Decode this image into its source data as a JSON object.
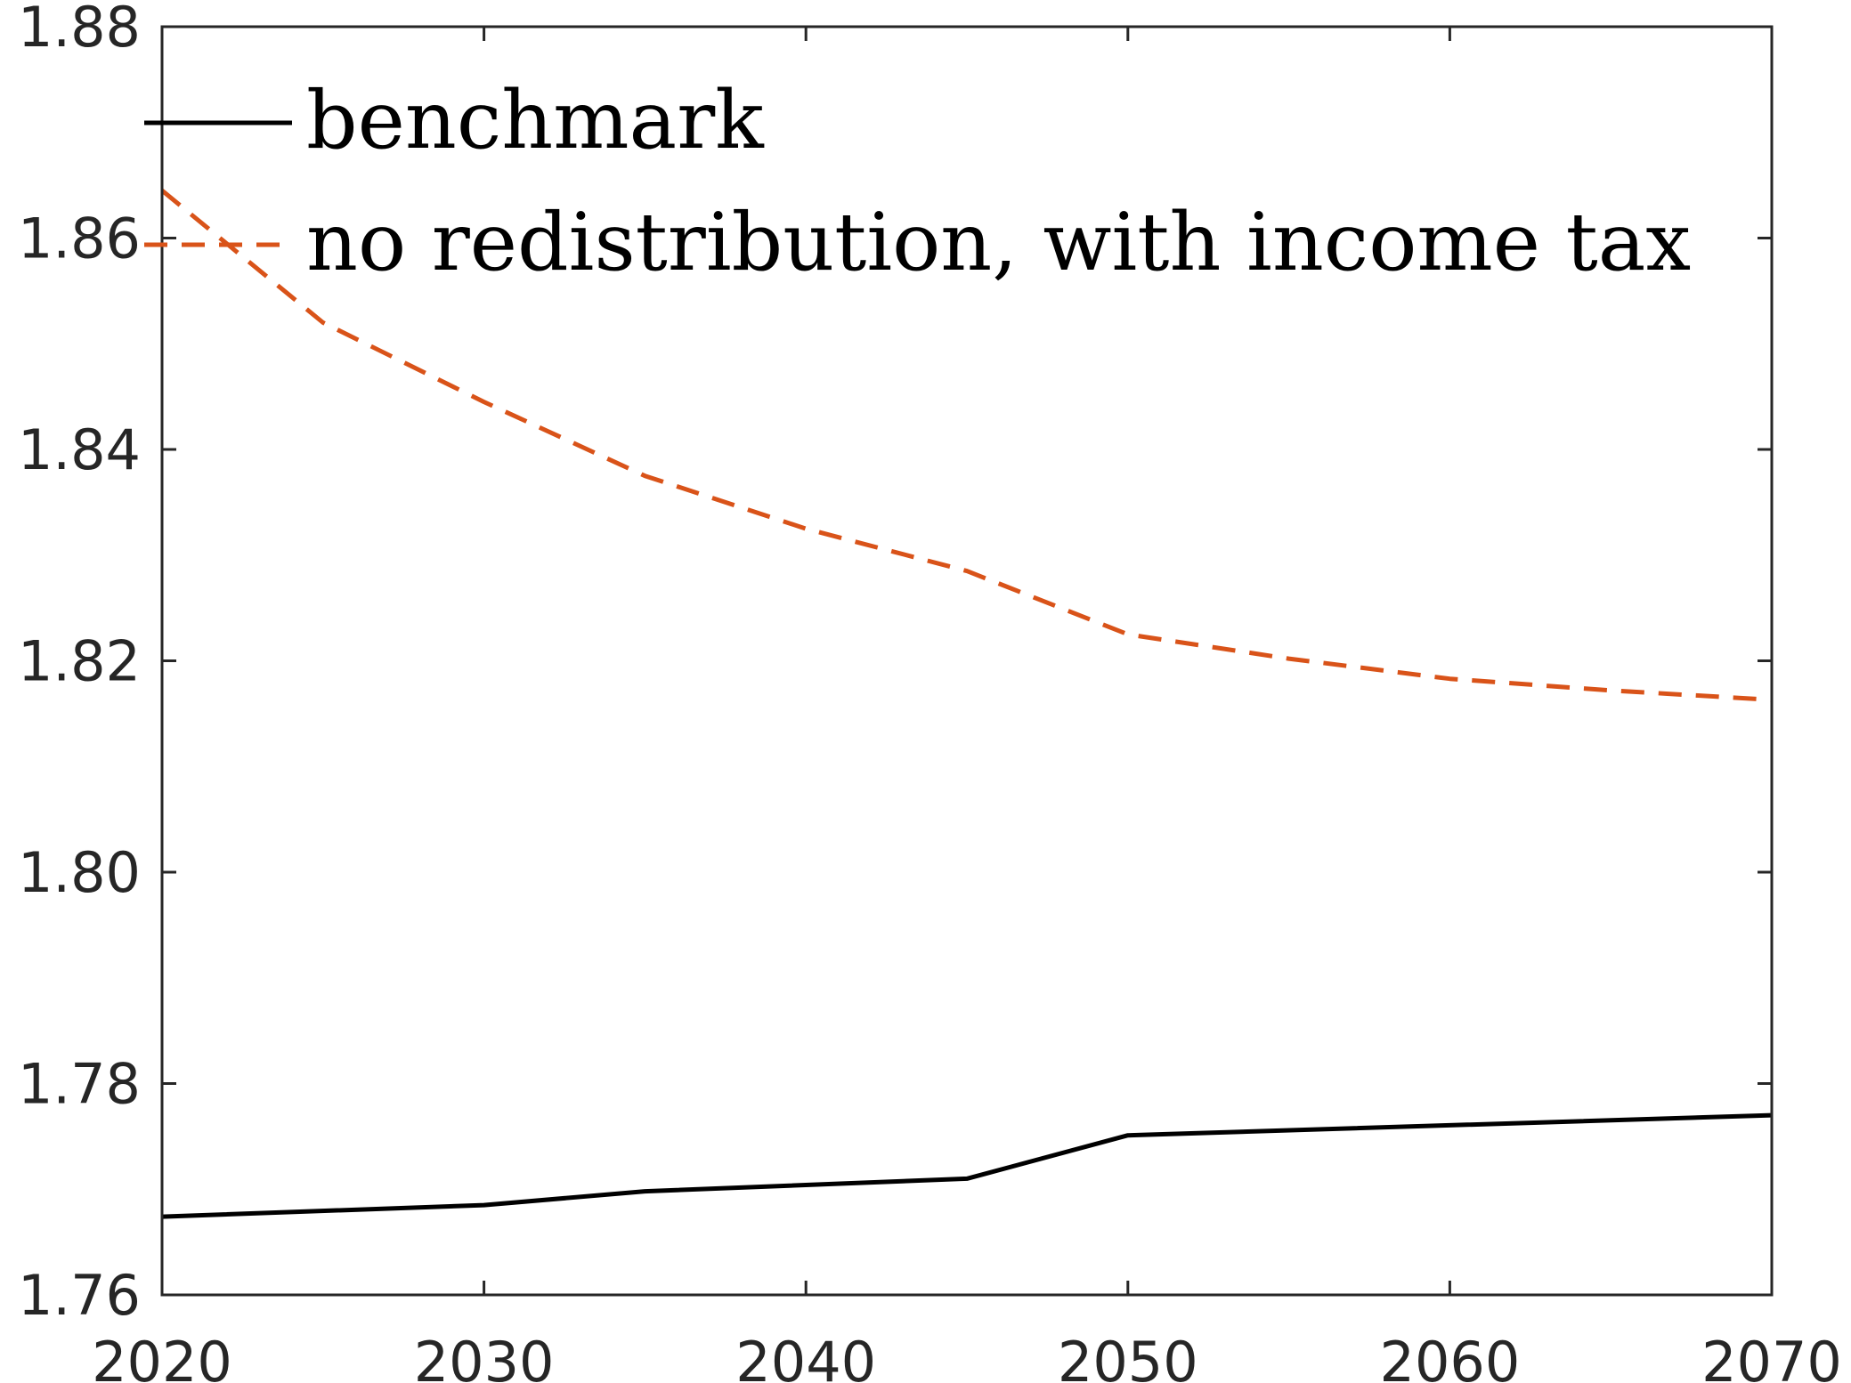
{
  "chart_data": {
    "type": "line",
    "title": "",
    "xlabel": "",
    "ylabel": "",
    "xlim": [
      2020,
      2070
    ],
    "ylim": [
      1.76,
      1.88
    ],
    "xticks": [
      2020,
      2030,
      2040,
      2050,
      2060,
      2070
    ],
    "yticks": [
      1.76,
      1.78,
      1.8,
      1.82,
      1.84,
      1.86,
      1.88
    ],
    "x_tick_labels": [
      "2020",
      "2030",
      "2040",
      "2050",
      "2060",
      "2070"
    ],
    "y_tick_labels": [
      "1.76",
      "1.78",
      "1.80",
      "1.82",
      "1.84",
      "1.86",
      "1.88"
    ],
    "grid": false,
    "legend_position": "top-left",
    "series": [
      {
        "name": "benchmark",
        "color": "#000000",
        "line_style": "solid",
        "x": [
          2020,
          2030,
          2035,
          2045,
          2050,
          2070
        ],
        "y": [
          1.7674,
          1.7685,
          1.7698,
          1.771,
          1.7751,
          1.777
        ]
      },
      {
        "name": "no redistribution, with income tax",
        "color": "#D95319",
        "line_style": "dashed",
        "x": [
          2020,
          2025,
          2030,
          2035,
          2040,
          2045,
          2050,
          2055,
          2060,
          2065,
          2070
        ],
        "y": [
          1.8645,
          1.852,
          1.8445,
          1.8375,
          1.8325,
          1.8285,
          1.8225,
          1.8202,
          1.8183,
          1.8172,
          1.8163
        ]
      }
    ]
  }
}
